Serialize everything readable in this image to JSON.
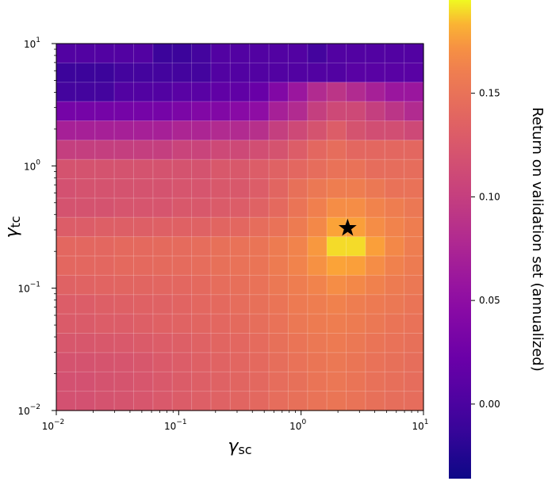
{
  "chart_data": {
    "type": "heatmap",
    "xlabel": "γsc",
    "ylabel": "γtc",
    "x_scale": "log",
    "y_scale": "log",
    "xlim": [
      0.01,
      10
    ],
    "ylim": [
      0.01,
      10
    ],
    "x_ticks": [
      {
        "value": 0.01,
        "base": "10",
        "exp": "−2"
      },
      {
        "value": 0.1,
        "base": "10",
        "exp": "−1"
      },
      {
        "value": 1,
        "base": "10",
        "exp": "0"
      },
      {
        "value": 10,
        "base": "10",
        "exp": "1"
      }
    ],
    "y_ticks": [
      {
        "value": 0.01,
        "base": "10",
        "exp": "−2"
      },
      {
        "value": 0.1,
        "base": "10",
        "exp": "−1"
      },
      {
        "value": 1,
        "base": "10",
        "exp": "0"
      },
      {
        "value": 10,
        "base": "10",
        "exp": "1"
      }
    ],
    "colormap": "plasma",
    "colorbar": {
      "label": "Return on validation set (annualized)",
      "range": [
        -0.036,
        0.195
      ],
      "ticks": [
        {
          "value": 0.0,
          "label": "0.00"
        },
        {
          "value": 0.05,
          "label": "0.05"
        },
        {
          "value": 0.1,
          "label": "0.10"
        },
        {
          "value": 0.15,
          "label": "0.15"
        }
      ]
    },
    "grid": true,
    "best_point": {
      "x": 2.4,
      "y": 0.31,
      "marker": "star"
    },
    "x_edges": [
      0.01,
      0.01438,
      0.02069,
      0.02976,
      0.04281,
      0.06158,
      0.08859,
      0.1274,
      0.1833,
      0.2637,
      0.3793,
      0.5456,
      0.7848,
      1.129,
      1.624,
      2.336,
      3.36,
      4.833,
      6.952,
      10
    ],
    "y_edges": [
      0.01,
      0.01438,
      0.02069,
      0.02976,
      0.04281,
      0.06158,
      0.08859,
      0.1274,
      0.1833,
      0.2637,
      0.3793,
      0.5456,
      0.7848,
      1.129,
      1.624,
      2.336,
      3.36,
      4.833,
      6.952,
      10
    ],
    "z_rows_top_to_bottom": [
      [
        0.005,
        0.005,
        0.005,
        0.005,
        0.005,
        -0.01,
        -0.01,
        -0.005,
        0.005,
        0.005,
        0.005,
        0.005,
        0.005,
        -0.005,
        0.005,
        0.005,
        0.005,
        0.005,
        0.005
      ],
      [
        -0.01,
        -0.01,
        -0.01,
        -0.005,
        -0.005,
        -0.005,
        -0.005,
        -0.005,
        0.005,
        0.005,
        0.005,
        0.005,
        0.005,
        0.005,
        0.005,
        0.01,
        0.01,
        0.01,
        0.01
      ],
      [
        -0.005,
        -0.005,
        -0.005,
        0.005,
        0.005,
        0.005,
        0.01,
        0.01,
        0.015,
        0.015,
        0.02,
        0.04,
        0.06,
        0.08,
        0.09,
        0.08,
        0.07,
        0.06,
        0.06
      ],
      [
        0.03,
        0.03,
        0.03,
        0.03,
        0.03,
        0.03,
        0.035,
        0.04,
        0.04,
        0.045,
        0.05,
        0.07,
        0.08,
        0.1,
        0.11,
        0.11,
        0.1,
        0.09,
        0.08
      ],
      [
        0.07,
        0.07,
        0.07,
        0.07,
        0.07,
        0.07,
        0.075,
        0.075,
        0.08,
        0.08,
        0.085,
        0.1,
        0.11,
        0.12,
        0.13,
        0.12,
        0.115,
        0.115,
        0.11
      ],
      [
        0.1,
        0.1,
        0.1,
        0.1,
        0.1,
        0.1,
        0.105,
        0.105,
        0.11,
        0.11,
        0.115,
        0.12,
        0.13,
        0.14,
        0.145,
        0.14,
        0.14,
        0.14,
        0.14
      ],
      [
        0.12,
        0.12,
        0.12,
        0.12,
        0.12,
        0.12,
        0.12,
        0.12,
        0.125,
        0.125,
        0.13,
        0.135,
        0.14,
        0.145,
        0.15,
        0.15,
        0.145,
        0.145,
        0.145
      ],
      [
        0.118,
        0.12,
        0.12,
        0.12,
        0.12,
        0.12,
        0.122,
        0.122,
        0.125,
        0.125,
        0.13,
        0.138,
        0.148,
        0.155,
        0.16,
        0.16,
        0.155,
        0.15,
        0.15
      ],
      [
        0.12,
        0.12,
        0.12,
        0.122,
        0.122,
        0.122,
        0.125,
        0.125,
        0.128,
        0.13,
        0.135,
        0.142,
        0.152,
        0.162,
        0.17,
        0.17,
        0.165,
        0.16,
        0.155
      ],
      [
        0.13,
        0.13,
        0.132,
        0.132,
        0.132,
        0.133,
        0.134,
        0.135,
        0.138,
        0.14,
        0.145,
        0.15,
        0.158,
        0.168,
        0.18,
        0.178,
        0.17,
        0.165,
        0.16
      ],
      [
        0.14,
        0.14,
        0.14,
        0.142,
        0.142,
        0.143,
        0.144,
        0.145,
        0.148,
        0.15,
        0.152,
        0.158,
        0.165,
        0.175,
        0.19,
        0.19,
        0.178,
        0.168,
        0.16
      ],
      [
        0.14,
        0.14,
        0.14,
        0.142,
        0.142,
        0.143,
        0.144,
        0.145,
        0.148,
        0.15,
        0.152,
        0.158,
        0.165,
        0.172,
        0.18,
        0.178,
        0.17,
        0.163,
        0.158
      ],
      [
        0.135,
        0.136,
        0.137,
        0.138,
        0.138,
        0.139,
        0.14,
        0.142,
        0.145,
        0.147,
        0.15,
        0.155,
        0.16,
        0.165,
        0.17,
        0.168,
        0.163,
        0.158,
        0.155
      ],
      [
        0.13,
        0.13,
        0.132,
        0.133,
        0.134,
        0.135,
        0.137,
        0.14,
        0.142,
        0.145,
        0.148,
        0.152,
        0.157,
        0.16,
        0.163,
        0.16,
        0.157,
        0.155,
        0.152
      ],
      [
        0.128,
        0.128,
        0.13,
        0.13,
        0.132,
        0.134,
        0.136,
        0.138,
        0.14,
        0.143,
        0.146,
        0.15,
        0.155,
        0.158,
        0.16,
        0.158,
        0.155,
        0.152,
        0.15
      ],
      [
        0.124,
        0.124,
        0.125,
        0.126,
        0.128,
        0.13,
        0.132,
        0.135,
        0.138,
        0.14,
        0.144,
        0.148,
        0.152,
        0.155,
        0.157,
        0.155,
        0.152,
        0.15,
        0.148
      ],
      [
        0.12,
        0.12,
        0.121,
        0.122,
        0.124,
        0.127,
        0.13,
        0.133,
        0.136,
        0.139,
        0.142,
        0.146,
        0.15,
        0.153,
        0.155,
        0.153,
        0.15,
        0.148,
        0.146
      ],
      [
        0.118,
        0.118,
        0.12,
        0.121,
        0.123,
        0.126,
        0.129,
        0.132,
        0.135,
        0.138,
        0.141,
        0.145,
        0.148,
        0.152,
        0.154,
        0.152,
        0.149,
        0.147,
        0.145
      ],
      [
        0.118,
        0.118,
        0.12,
        0.121,
        0.123,
        0.126,
        0.129,
        0.132,
        0.135,
        0.138,
        0.141,
        0.145,
        0.148,
        0.151,
        0.153,
        0.151,
        0.148,
        0.146,
        0.145
      ]
    ]
  }
}
